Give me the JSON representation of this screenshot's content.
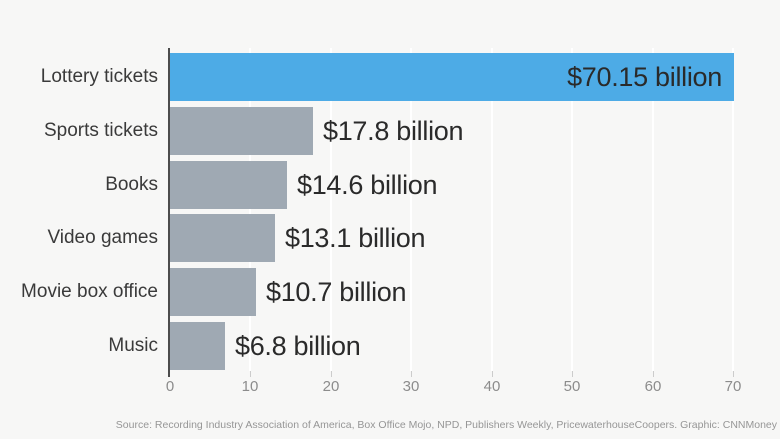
{
  "chart_data": {
    "type": "bar",
    "orientation": "horizontal",
    "title": "",
    "categories": [
      "Lottery tickets",
      "Sports tickets",
      "Books",
      "Video games",
      "Movie box office",
      "Music"
    ],
    "values": [
      70.15,
      17.8,
      14.6,
      13.1,
      10.7,
      6.8
    ],
    "value_labels": [
      "$70.15 billion",
      "$17.8 billion",
      "$14.6 billion",
      "$13.1 billion",
      "$10.7 billion",
      "$6.8 billion"
    ],
    "value_label_inside": [
      true,
      false,
      false,
      false,
      false,
      false
    ],
    "highlight_index": 0,
    "xlabel": "",
    "ylabel": "",
    "xlim": [
      0,
      70
    ],
    "xticks": [
      0,
      10,
      20,
      30,
      40,
      50,
      60,
      70
    ],
    "grid": true,
    "legend": false,
    "colors": {
      "background": "#f7f7f6",
      "highlight_bar": "#4dabe6",
      "bar": "#9fa9b3",
      "axis_line": "#4c4c4c",
      "gridline": "#ffffff",
      "tick_mark": "#cccccc",
      "value_text": "#2a2a2a",
      "category_text": "#3a3a3a",
      "tick_text": "#8c8c8c",
      "source_text": "#969696"
    }
  },
  "source_line": "Source: Recording Industry Association of America, Box Office Mojo, NPD, Publishers Weekly, PricewaterhouseCoopers. Graphic: CNNMoney"
}
